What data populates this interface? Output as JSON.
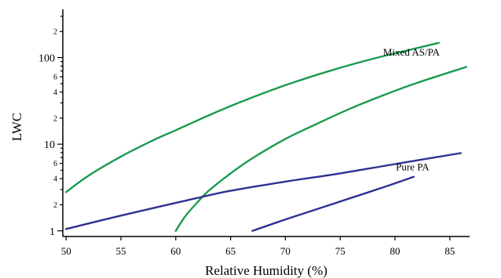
{
  "chart_data": {
    "type": "line",
    "title": "",
    "xlabel": "Relative Humidity (%)",
    "ylabel": "LWC",
    "xlim": [
      49.7,
      86.8
    ],
    "ylim": [
      0.86,
      360
    ],
    "y_scale": "log",
    "grid": false,
    "legend": "none",
    "x_ticks": [
      50,
      55,
      60,
      65,
      70,
      75,
      80,
      85
    ],
    "y_major_ticks": [
      {
        "value": 1,
        "label": "1"
      },
      {
        "value": 10,
        "label": "10"
      },
      {
        "value": 100,
        "label": "100"
      }
    ],
    "y_minor_ticks": [
      {
        "value": 2,
        "label": "2"
      },
      {
        "value": 4,
        "label": "4"
      },
      {
        "value": 6,
        "label": "6"
      },
      {
        "value": 20,
        "label": "2"
      },
      {
        "value": 40,
        "label": "4"
      },
      {
        "value": 60,
        "label": "6"
      },
      {
        "value": 200,
        "label": "2"
      }
    ],
    "annotations": [
      {
        "text": "Mixed AS/PA",
        "x": 81.5,
        "y": 105
      },
      {
        "text": "Pure PA",
        "x": 81.6,
        "y": 5.0
      }
    ],
    "series": [
      {
        "color": "#1a9a50",
        "x": [
          50,
          52,
          55,
          58,
          60,
          63,
          66,
          70,
          74,
          78,
          81,
          84
        ],
        "y": [
          2.8,
          4.3,
          7.2,
          11.2,
          14.5,
          21.5,
          31,
          48,
          70,
          97,
          120,
          148
        ]
      },
      {
        "color": "#1a9a50",
        "x": [
          60,
          60.5,
          61,
          62,
          63,
          65,
          67,
          70,
          73,
          76,
          79,
          82,
          86.5
        ],
        "y": [
          1.0,
          1.26,
          1.55,
          2.15,
          2.9,
          4.6,
          6.9,
          11.5,
          17.5,
          26,
          37,
          51,
          78
        ]
      },
      {
        "color": "#2e3192",
        "x": [
          50,
          55,
          60,
          62,
          65,
          70,
          75,
          80,
          86
        ],
        "y": [
          1.05,
          1.5,
          2.1,
          2.4,
          2.9,
          3.7,
          4.6,
          5.9,
          7.9
        ]
      },
      {
        "color": "#2e3192",
        "x": [
          67,
          70,
          73,
          76,
          79,
          81.7
        ],
        "y": [
          1.0,
          1.35,
          1.8,
          2.4,
          3.2,
          4.2
        ]
      }
    ]
  }
}
